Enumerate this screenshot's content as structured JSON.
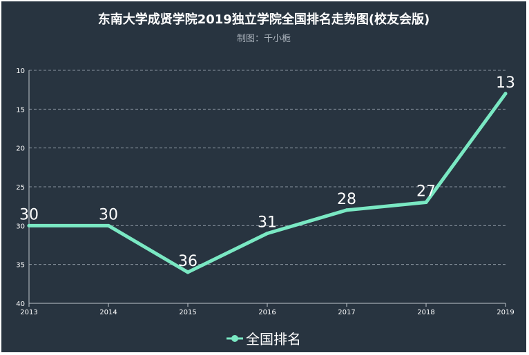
{
  "chart_data": {
    "type": "line",
    "title": "东南大学成贤学院2019独立学院全国排名走势图(校友会版)",
    "subtitle": "制图：千小栀",
    "x": [
      "2013",
      "2014",
      "2015",
      "2016",
      "2017",
      "2018",
      "2019"
    ],
    "series": [
      {
        "name": "全国排名",
        "values": [
          30,
          30,
          36,
          31,
          28,
          27,
          13
        ]
      }
    ],
    "ylim": [
      10,
      40
    ],
    "y_ticks": [
      10,
      15,
      20,
      25,
      30,
      35,
      40
    ],
    "y_inverted": true,
    "grid": true,
    "legend": "bottom",
    "colors": {
      "background": "#283440",
      "line": "#7ae8c3",
      "grid": "#8a95a0",
      "axis_text": "#ffffff",
      "label_text": "#ffffff"
    }
  }
}
